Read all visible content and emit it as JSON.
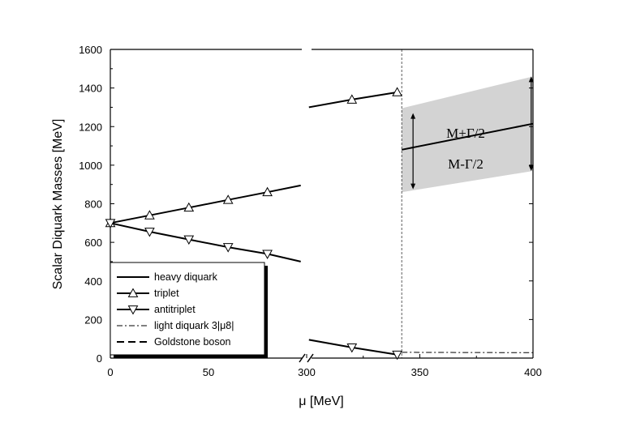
{
  "chart_data": {
    "type": "line",
    "ylabel": "Scalar Diquark Masses   [MeV]",
    "xlabel": "μ [MeV]",
    "ylim": [
      0,
      1600
    ],
    "y_ticks": [
      "0",
      "200",
      "400",
      "600",
      "800",
      "1000",
      "1200",
      "1400",
      "1600"
    ],
    "x_segments": [
      {
        "xlim": [
          0,
          92
        ],
        "ticks": [
          "0",
          "50"
        ],
        "tick_values": [
          0,
          50
        ]
      },
      {
        "xlim": [
          297,
          400
        ],
        "ticks": [
          "300",
          "350",
          "400"
        ],
        "tick_values": [
          300,
          350,
          400
        ]
      }
    ],
    "tick_labels": {
      "zero_x": "0",
      "axis_break": "//"
    },
    "vertical_reference_x": 342,
    "series": [
      {
        "name": "heavy diquark",
        "style": "solid",
        "marker": "none",
        "points": [
          [
            342,
            1080
          ],
          [
            400,
            1215
          ]
        ]
      },
      {
        "name": "triplet",
        "style": "solid",
        "marker": "triangle-up",
        "points": [
          [
            0,
            700
          ],
          [
            20,
            740
          ],
          [
            40,
            780
          ],
          [
            60,
            820
          ],
          [
            80,
            860
          ],
          [
            97,
            895
          ],
          [
            301,
            1300
          ],
          [
            320,
            1340
          ],
          [
            340,
            1378
          ]
        ]
      },
      {
        "name": "antitriplet",
        "style": "solid",
        "marker": "triangle-down",
        "points": [
          [
            0,
            700
          ],
          [
            20,
            655
          ],
          [
            40,
            615
          ],
          [
            60,
            575
          ],
          [
            80,
            540
          ],
          [
            97,
            500
          ],
          [
            301,
            95
          ],
          [
            320,
            55
          ],
          [
            340,
            18
          ]
        ]
      },
      {
        "name": "light diquark   3|μ8|",
        "style": "dashdot",
        "marker": "none",
        "points": [
          [
            342,
            30
          ],
          [
            400,
            28
          ]
        ]
      },
      {
        "name": "Goldstone boson",
        "style": "dashed",
        "marker": "none",
        "points": []
      }
    ],
    "width_band": {
      "upper_label": "M+Γ/2",
      "lower_label": "M-Γ/2",
      "upper": [
        [
          342,
          1295
        ],
        [
          400,
          1460
        ]
      ],
      "lower": [
        [
          342,
          860
        ],
        [
          400,
          970
        ]
      ],
      "fill": "#d3d3d3"
    },
    "legend": {
      "placement": "bottom-left",
      "entries": [
        {
          "label": "heavy diquark",
          "style": "solid",
          "marker": "none"
        },
        {
          "label": "triplet",
          "style": "solid",
          "marker": "triangle-up"
        },
        {
          "label": "antitriplet",
          "style": "solid",
          "marker": "triangle-down"
        },
        {
          "label": "light diquark   3|μ8|",
          "style": "dashdot",
          "marker": "none"
        },
        {
          "label": "Goldstone boson",
          "style": "dashed",
          "marker": "none"
        }
      ]
    }
  }
}
